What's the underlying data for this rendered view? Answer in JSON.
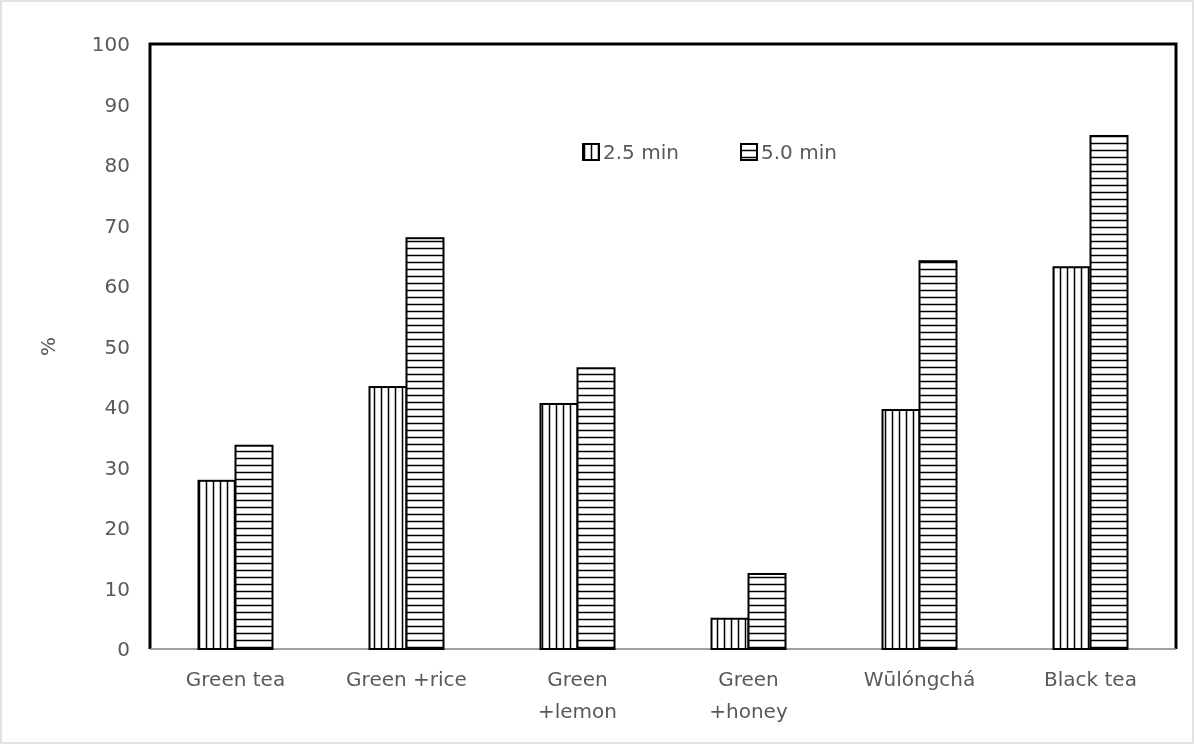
{
  "chart_data": {
    "type": "bar",
    "ylabel": "%",
    "categories": [
      "Green tea",
      "Green +rice",
      "Green +lemon",
      "Green +honey",
      "Wūlóngchá",
      "Black tea"
    ],
    "series": [
      {
        "name": "2.5 min",
        "color": "#000000",
        "values": [
          27.8,
          43.3,
          40.5,
          5.0,
          39.5,
          63.1
        ]
      },
      {
        "name": "5.0 min",
        "color": "#000000",
        "values": [
          33.6,
          67.9,
          46.4,
          12.4,
          64.1,
          84.8
        ]
      }
    ],
    "ylim": [
      0,
      100
    ],
    "yticks": [
      0,
      10,
      20,
      30,
      40,
      50,
      60,
      70,
      80,
      90,
      100
    ],
    "grid": false,
    "legend": "top"
  }
}
